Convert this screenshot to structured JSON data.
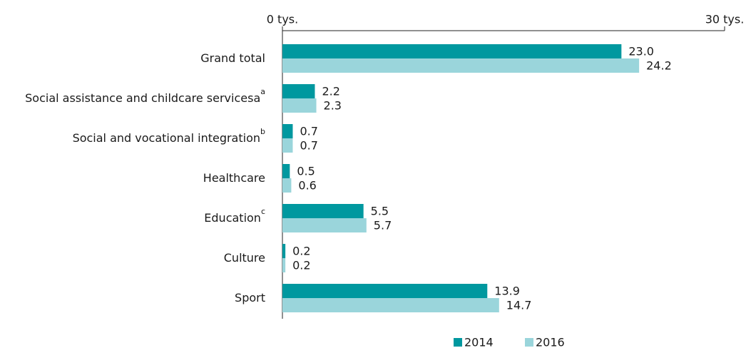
{
  "chart_data": {
    "type": "hbar",
    "categories": [
      "Grand total",
      "Social assistance and childcare servicesa",
      "Social and vocational integration",
      "Healthcare",
      "Education",
      "Culture",
      "Sport"
    ],
    "footnotes": [
      null,
      "a",
      "b",
      null,
      "c",
      null,
      null
    ],
    "series": [
      {
        "name": "2014",
        "color": "#00989f",
        "values": [
          23.0,
          2.2,
          0.7,
          0.5,
          5.5,
          0.2,
          13.9
        ],
        "value_labels": [
          "23.0",
          "2.2",
          "0.7",
          "0.5",
          "5.5",
          "0.2",
          "13.9"
        ]
      },
      {
        "name": "2016",
        "color": "#9ad5db",
        "values": [
          24.2,
          2.3,
          0.7,
          0.6,
          5.7,
          0.2,
          14.7
        ],
        "value_labels": [
          "24.2",
          "2.3",
          "0.7",
          "0.6",
          "5.7",
          "0.2",
          "14.7"
        ]
      }
    ],
    "xlim": [
      0,
      30
    ],
    "xticks": [
      {
        "value": 0,
        "label": "0 tys."
      },
      {
        "value": 30,
        "label": "30 tys."
      }
    ],
    "legend": "bottom"
  }
}
